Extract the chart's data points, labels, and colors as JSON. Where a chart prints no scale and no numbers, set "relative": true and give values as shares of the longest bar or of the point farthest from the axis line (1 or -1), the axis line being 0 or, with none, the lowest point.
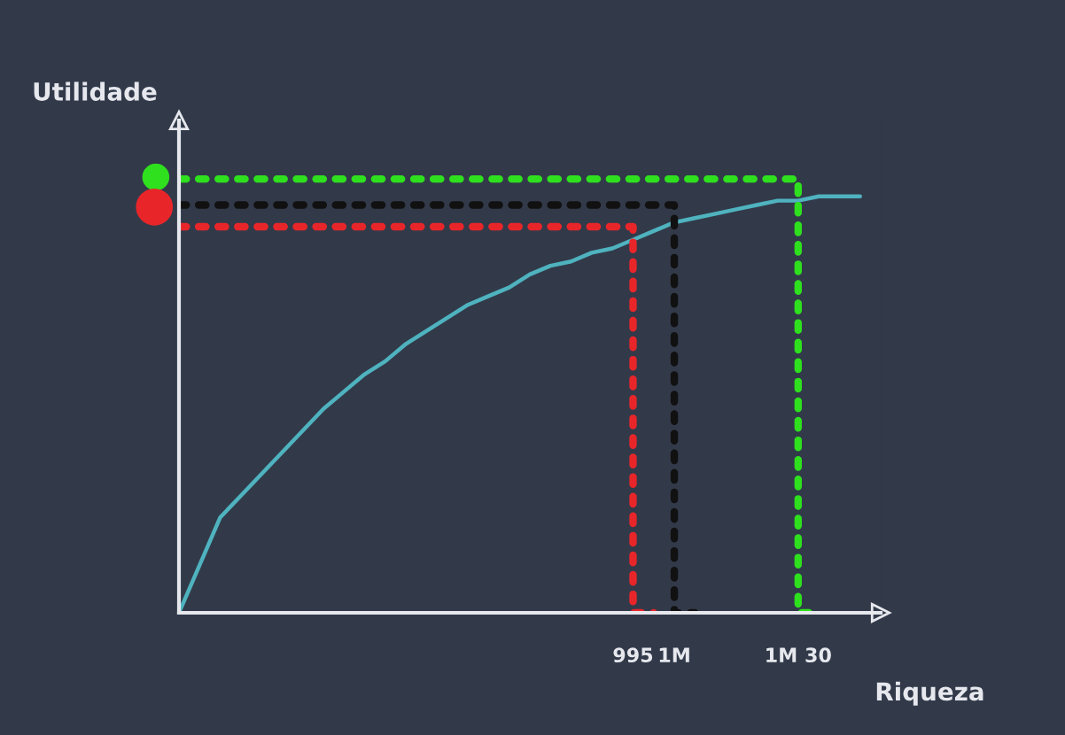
{
  "chart_data": {
    "type": "line",
    "relative": true,
    "xlabel": "Riqueza",
    "ylabel": "Utilidade",
    "categories": [
      null,
      null,
      null,
      null,
      null,
      null,
      null,
      null,
      null,
      null,
      null,
      null,
      null,
      null,
      null,
      null,
      null,
      null,
      null,
      null,
      null,
      null,
      "995",
      null,
      "1M",
      null,
      null,
      null,
      null,
      null,
      "1M 30",
      null,
      null,
      null,
      null
    ],
    "grid": false,
    "legend": false,
    "marker": "none",
    "series": [
      {
        "color": "#4fb3bf",
        "line_style": "solid",
        "values": [
          0,
          0.11,
          0.22,
          0.27,
          0.32,
          0.37,
          0.42,
          0.47,
          0.51,
          0.55,
          0.58,
          0.62,
          0.65,
          0.68,
          0.71,
          0.73,
          0.75,
          0.78,
          0.8,
          0.81,
          0.83,
          0.84,
          0.86,
          0.88,
          0.9,
          0.91,
          0.92,
          0.93,
          0.94,
          0.95,
          0.95,
          0.96,
          0.96,
          0.96,
          null
        ]
      },
      {
        "type": "step",
        "color": "#e8262a",
        "line_style": "dotted",
        "values": [
          0.89,
          0.89,
          0.89,
          0.89,
          0.89,
          0.89,
          0.89,
          0.89,
          0.89,
          0.89,
          0.89,
          0.89,
          0.89,
          0.89,
          0.89,
          0.89,
          0.89,
          0.89,
          0.89,
          0.89,
          0.89,
          0.89,
          0.89,
          0,
          null,
          null,
          null,
          null,
          null,
          null,
          null,
          null,
          null,
          null,
          null
        ]
      },
      {
        "type": "step",
        "color": "#111111",
        "line_style": "dotted",
        "values": [
          0.94,
          0.94,
          0.94,
          0.94,
          0.94,
          0.94,
          0.94,
          0.94,
          0.94,
          0.94,
          0.94,
          0.94,
          0.94,
          0.94,
          0.94,
          0.94,
          0.94,
          0.94,
          0.94,
          0.94,
          0.94,
          0.94,
          0.94,
          0.94,
          0.94,
          0,
          null,
          null,
          null,
          null,
          null,
          null,
          null,
          null,
          null
        ]
      },
      {
        "type": "step",
        "color": "#2fe01e",
        "line_style": "dotted",
        "values": [
          1,
          1,
          1,
          1,
          1,
          1,
          1,
          1,
          1,
          1,
          1,
          1,
          1,
          1,
          1,
          1,
          1,
          1,
          1,
          1,
          1,
          1,
          1,
          1,
          1,
          1,
          1,
          1,
          1,
          1,
          1,
          0,
          null,
          null,
          null
        ]
      }
    ]
  }
}
